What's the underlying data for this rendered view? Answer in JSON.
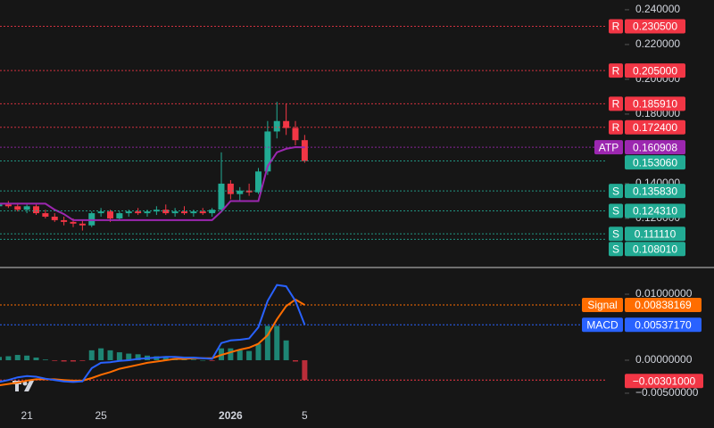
{
  "chart_data": [
    {
      "type": "candlestick",
      "categories": [
        null,
        null,
        null,
        "21",
        null,
        null,
        null,
        null,
        null,
        null,
        null,
        "25",
        null,
        null,
        null,
        null,
        null,
        null,
        null,
        null,
        null,
        null,
        null,
        null,
        null,
        "2026",
        null,
        null,
        null,
        null,
        null,
        null,
        null,
        "5"
      ],
      "open": [
        0.127,
        0.128,
        0.127,
        0.125,
        0.127,
        0.123,
        0.121,
        0.119,
        0.118,
        0.117,
        0.116,
        0.123,
        0.124,
        0.12,
        0.123,
        0.124,
        0.123,
        0.124,
        0.125,
        0.123,
        0.124,
        0.123,
        0.124,
        0.123,
        0.125,
        0.14,
        0.134,
        0.136,
        0.135,
        0.147,
        0.17,
        0.176,
        0.172,
        0.165
      ],
      "high": [
        0.129,
        0.13,
        0.129,
        0.128,
        0.128,
        0.125,
        0.123,
        0.121,
        0.12,
        0.119,
        0.124,
        0.126,
        0.125,
        0.124,
        0.125,
        0.126,
        0.125,
        0.127,
        0.128,
        0.126,
        0.127,
        0.125,
        0.126,
        0.126,
        0.158,
        0.142,
        0.138,
        0.14,
        0.149,
        0.176,
        0.187,
        0.186,
        0.176,
        0.168
      ],
      "low": [
        0.125,
        0.126,
        0.124,
        0.123,
        0.122,
        0.12,
        0.118,
        0.116,
        0.115,
        0.113,
        0.115,
        0.121,
        0.118,
        0.119,
        0.121,
        0.122,
        0.121,
        0.122,
        0.122,
        0.121,
        0.122,
        0.121,
        0.122,
        0.121,
        0.124,
        0.131,
        0.13,
        0.133,
        0.134,
        0.145,
        0.166,
        0.168,
        0.162,
        0.152
      ],
      "close": [
        0.128,
        0.127,
        0.125,
        0.127,
        0.123,
        0.121,
        0.119,
        0.118,
        0.117,
        0.116,
        0.123,
        0.124,
        0.12,
        0.123,
        0.124,
        0.123,
        0.124,
        0.125,
        0.123,
        0.124,
        0.123,
        0.124,
        0.123,
        0.125,
        0.14,
        0.134,
        0.136,
        0.135,
        0.147,
        0.17,
        0.176,
        0.172,
        0.165,
        0.153
      ],
      "up_color": "#22ab94",
      "down_color": "#f23645",
      "series": [
        {
          "name": "ATP",
          "color": "#9c27b0",
          "values": [
            0.1285,
            0.1285,
            0.1285,
            0.1285,
            0.1285,
            0.1285,
            0.125,
            0.1225,
            0.119,
            0.119,
            0.119,
            0.119,
            0.119,
            0.119,
            0.119,
            0.119,
            0.119,
            0.119,
            0.119,
            0.119,
            0.119,
            0.119,
            0.119,
            0.119,
            0.124,
            0.13,
            0.13,
            0.13,
            0.13,
            0.15,
            0.158,
            0.16,
            0.161,
            0.1609
          ]
        }
      ],
      "levels": [
        {
          "tag": "R",
          "value": 0.2305,
          "value_label": "0.230500",
          "color": "#f23645"
        },
        {
          "tag": "R",
          "value": 0.205,
          "value_label": "0.205000",
          "color": "#f23645"
        },
        {
          "tag": "R",
          "value": 0.18591,
          "value_label": "0.185910",
          "color": "#f23645"
        },
        {
          "tag": "R",
          "value": 0.1724,
          "value_label": "0.172400",
          "color": "#f23645"
        },
        {
          "tag": "ATP",
          "value": 0.160908,
          "value_label": "0.160908",
          "color": "#9c27b0"
        },
        {
          "value": 0.15306,
          "value_label": "0.153060",
          "color": "#22ab94"
        },
        {
          "tag": "S",
          "value": 0.13583,
          "value_label": "0.135830",
          "color": "#22ab94"
        },
        {
          "tag": "S",
          "value": 0.12431,
          "value_label": "0.124310",
          "color": "#22ab94"
        },
        {
          "tag": "S",
          "value": 0.11111,
          "value_label": "0.111110",
          "color": "#22ab94"
        },
        {
          "tag": "S",
          "value": 0.10801,
          "value_label": "0.108010",
          "color": "#22ab94"
        }
      ],
      "ylim": [
        0.0928,
        0.2456
      ],
      "yticks": [
        {
          "value": 0.24,
          "label": "0.240000"
        },
        {
          "value": 0.22,
          "label": "0.220000"
        },
        {
          "value": 0.2,
          "label": "0.200000"
        },
        {
          "value": 0.18,
          "label": "0.180000"
        },
        {
          "value": 0.14,
          "label": "0.140000"
        },
        {
          "value": 0.12,
          "label": "0.120000"
        }
      ]
    },
    {
      "type": "macd",
      "series": [
        {
          "name": "Signal",
          "color": "#ff6d00",
          "last_label": "0.00838169",
          "values": [
            -0.0038,
            -0.0036,
            -0.0034,
            -0.0031,
            -0.0029,
            -0.0029,
            -0.0029,
            -0.003,
            -0.0031,
            -0.0031,
            -0.0027,
            -0.0022,
            -0.0018,
            -0.0013,
            -0.001,
            -0.0007,
            -0.0004,
            -0.0002,
            0.0,
            0.0002,
            0.0002,
            0.0003,
            0.0003,
            0.0003,
            0.0008,
            0.0012,
            0.0016,
            0.0019,
            0.0025,
            0.0038,
            0.0062,
            0.0082,
            0.0092,
            0.00838169
          ]
        },
        {
          "name": "MACD",
          "color": "#2962ff",
          "last_label": "0.00537170",
          "values": [
            -0.0033,
            -0.003,
            -0.0026,
            -0.0024,
            -0.0025,
            -0.0028,
            -0.003,
            -0.0032,
            -0.0033,
            -0.0032,
            -0.0012,
            -0.0004,
            -0.0003,
            -0.0001,
            0.0,
            0.0002,
            0.0003,
            0.0004,
            0.0005,
            0.0005,
            0.0004,
            0.0004,
            0.0003,
            0.0002,
            0.0026,
            0.003,
            0.0031,
            0.0033,
            0.005,
            0.009,
            0.0114,
            0.0112,
            0.009,
            0.0053717
          ]
        }
      ],
      "histogram": {
        "up_color": "#22ab94",
        "down_color": "#f23645",
        "last_label": "−0.00301000",
        "values": [
          0.0005,
          0.0006,
          0.0008,
          0.0007,
          0.0004,
          0.0001,
          -0.0001,
          -0.0002,
          -0.0002,
          -0.0001,
          0.0015,
          0.0018,
          0.0015,
          0.0012,
          0.001,
          0.0009,
          0.0007,
          0.0006,
          0.0005,
          0.0003,
          0.0002,
          0.0001,
          0.0,
          -0.0001,
          0.0018,
          0.0018,
          0.0015,
          0.0014,
          0.0025,
          0.0052,
          0.0052,
          0.003,
          -0.0002,
          -0.00301
        ]
      },
      "ylim": [
        -0.00757,
        0.01378
      ],
      "yticks": [
        {
          "value": 0.01,
          "label": "0.01000000"
        },
        {
          "value": 0,
          "label": "0.00000000"
        },
        {
          "value": -0.005,
          "label": "−0.00500000"
        }
      ]
    }
  ]
}
